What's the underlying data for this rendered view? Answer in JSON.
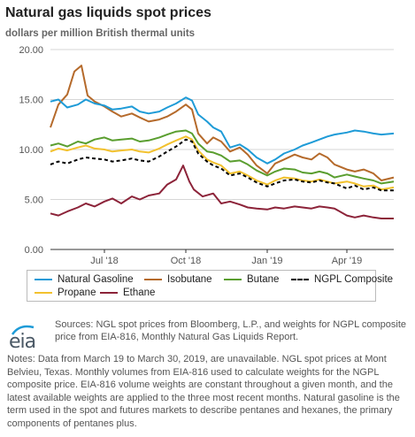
{
  "header": {
    "title": "Natural gas liquids spot prices",
    "subtitle": "dollars per million British thermal units"
  },
  "chart_data": {
    "type": "line",
    "title": "Natural gas liquids spot prices",
    "ylabel": "dollars per million British thermal units",
    "ylim": [
      0,
      20
    ],
    "yticks": [
      "0.00",
      "5.00",
      "10.00",
      "15.00",
      "20.00"
    ],
    "xticks": [
      "Jul '18",
      "Oct '18",
      "Jan '19",
      "Apr '19"
    ],
    "xtick_dates": [
      "2018-07-01",
      "2018-10-01",
      "2019-01-01",
      "2019-04-01"
    ],
    "x_range": [
      "2018-05-01",
      "2019-05-24"
    ],
    "grid": "horizontal",
    "legend_position": "bottom",
    "series": [
      {
        "name": "Natural Gasoline",
        "color": "#1e9bd7",
        "dash": "solid",
        "points": [
          [
            "2018-05-01",
            14.8
          ],
          [
            "2018-05-10",
            15.0
          ],
          [
            "2018-05-20",
            14.2
          ],
          [
            "2018-06-01",
            14.5
          ],
          [
            "2018-06-10",
            15.0
          ],
          [
            "2018-06-20",
            14.6
          ],
          [
            "2018-07-01",
            14.4
          ],
          [
            "2018-07-10",
            14.0
          ],
          [
            "2018-07-20",
            14.1
          ],
          [
            "2018-08-01",
            14.3
          ],
          [
            "2018-08-10",
            13.8
          ],
          [
            "2018-08-20",
            13.6
          ],
          [
            "2018-09-01",
            13.8
          ],
          [
            "2018-09-10",
            14.2
          ],
          [
            "2018-09-20",
            14.6
          ],
          [
            "2018-10-01",
            15.2
          ],
          [
            "2018-10-08",
            14.9
          ],
          [
            "2018-10-15",
            13.5
          ],
          [
            "2018-10-25",
            12.8
          ],
          [
            "2018-11-01",
            12.2
          ],
          [
            "2018-11-10",
            11.8
          ],
          [
            "2018-11-20",
            10.2
          ],
          [
            "2018-12-01",
            10.5
          ],
          [
            "2018-12-10",
            10.0
          ],
          [
            "2018-12-20",
            9.2
          ],
          [
            "2019-01-01",
            8.6
          ],
          [
            "2019-01-10",
            9.0
          ],
          [
            "2019-01-20",
            9.6
          ],
          [
            "2019-02-01",
            10.0
          ],
          [
            "2019-02-10",
            10.4
          ],
          [
            "2019-02-20",
            10.7
          ],
          [
            "2019-03-01",
            11.0
          ],
          [
            "2019-03-10",
            11.3
          ],
          [
            "2019-03-18",
            11.5
          ],
          [
            "2019-04-01",
            11.7
          ],
          [
            "2019-04-10",
            11.9
          ],
          [
            "2019-04-20",
            11.8
          ],
          [
            "2019-05-01",
            11.6
          ],
          [
            "2019-05-10",
            11.5
          ],
          [
            "2019-05-24",
            11.6
          ]
        ]
      },
      {
        "name": "Isobutane",
        "color": "#b56a2b",
        "dash": "solid",
        "points": [
          [
            "2018-05-01",
            12.2
          ],
          [
            "2018-05-10",
            14.5
          ],
          [
            "2018-05-20",
            15.5
          ],
          [
            "2018-05-28",
            17.8
          ],
          [
            "2018-06-05",
            18.4
          ],
          [
            "2018-06-12",
            15.4
          ],
          [
            "2018-06-20",
            14.8
          ],
          [
            "2018-07-01",
            14.3
          ],
          [
            "2018-07-10",
            13.8
          ],
          [
            "2018-07-20",
            13.3
          ],
          [
            "2018-08-01",
            13.6
          ],
          [
            "2018-08-10",
            13.2
          ],
          [
            "2018-08-20",
            12.8
          ],
          [
            "2018-09-01",
            13.0
          ],
          [
            "2018-09-10",
            13.3
          ],
          [
            "2018-09-20",
            13.8
          ],
          [
            "2018-10-01",
            14.5
          ],
          [
            "2018-10-08",
            14.0
          ],
          [
            "2018-10-15",
            11.6
          ],
          [
            "2018-10-25",
            10.6
          ],
          [
            "2018-11-01",
            11.2
          ],
          [
            "2018-11-10",
            10.8
          ],
          [
            "2018-11-20",
            9.8
          ],
          [
            "2018-12-01",
            10.2
          ],
          [
            "2018-12-10",
            9.5
          ],
          [
            "2018-12-20",
            8.4
          ],
          [
            "2019-01-01",
            7.6
          ],
          [
            "2019-01-10",
            8.6
          ],
          [
            "2019-01-20",
            9.0
          ],
          [
            "2019-02-01",
            9.5
          ],
          [
            "2019-02-10",
            9.2
          ],
          [
            "2019-02-20",
            9.0
          ],
          [
            "2019-03-01",
            9.6
          ],
          [
            "2019-03-10",
            9.2
          ],
          [
            "2019-03-18",
            8.5
          ],
          [
            "2019-04-01",
            8.0
          ],
          [
            "2019-04-10",
            7.8
          ],
          [
            "2019-04-20",
            8.0
          ],
          [
            "2019-05-01",
            7.6
          ],
          [
            "2019-05-10",
            6.9
          ],
          [
            "2019-05-24",
            7.2
          ]
        ]
      },
      {
        "name": "Butane",
        "color": "#5a9e2f",
        "dash": "solid",
        "points": [
          [
            "2018-05-01",
            10.4
          ],
          [
            "2018-05-10",
            10.6
          ],
          [
            "2018-05-20",
            10.3
          ],
          [
            "2018-06-01",
            10.8
          ],
          [
            "2018-06-10",
            10.6
          ],
          [
            "2018-06-20",
            11.0
          ],
          [
            "2018-07-01",
            11.2
          ],
          [
            "2018-07-10",
            10.9
          ],
          [
            "2018-07-20",
            11.0
          ],
          [
            "2018-08-01",
            11.1
          ],
          [
            "2018-08-10",
            10.8
          ],
          [
            "2018-08-20",
            10.9
          ],
          [
            "2018-09-01",
            11.2
          ],
          [
            "2018-09-10",
            11.5
          ],
          [
            "2018-09-20",
            11.8
          ],
          [
            "2018-10-01",
            11.9
          ],
          [
            "2018-10-08",
            11.6
          ],
          [
            "2018-10-15",
            10.6
          ],
          [
            "2018-10-25",
            9.8
          ],
          [
            "2018-11-01",
            9.7
          ],
          [
            "2018-11-10",
            9.4
          ],
          [
            "2018-11-20",
            8.8
          ],
          [
            "2018-12-01",
            8.9
          ],
          [
            "2018-12-10",
            8.5
          ],
          [
            "2018-12-20",
            7.9
          ],
          [
            "2019-01-01",
            7.4
          ],
          [
            "2019-01-10",
            7.8
          ],
          [
            "2019-01-20",
            8.1
          ],
          [
            "2019-02-01",
            8.0
          ],
          [
            "2019-02-10",
            7.7
          ],
          [
            "2019-02-20",
            7.6
          ],
          [
            "2019-03-01",
            7.8
          ],
          [
            "2019-03-10",
            7.6
          ],
          [
            "2019-03-18",
            7.2
          ],
          [
            "2019-04-01",
            7.5
          ],
          [
            "2019-04-10",
            7.3
          ],
          [
            "2019-04-20",
            7.1
          ],
          [
            "2019-05-01",
            6.9
          ],
          [
            "2019-05-10",
            6.6
          ],
          [
            "2019-05-24",
            6.8
          ]
        ]
      },
      {
        "name": "NGPL Composite",
        "color": "#000000",
        "dash": "dashed",
        "points": [
          [
            "2018-05-01",
            8.5
          ],
          [
            "2018-05-10",
            8.8
          ],
          [
            "2018-05-20",
            8.6
          ],
          [
            "2018-06-01",
            9.0
          ],
          [
            "2018-06-10",
            9.2
          ],
          [
            "2018-06-20",
            9.1
          ],
          [
            "2018-07-01",
            9.0
          ],
          [
            "2018-07-10",
            8.8
          ],
          [
            "2018-07-20",
            8.9
          ],
          [
            "2018-08-01",
            9.1
          ],
          [
            "2018-08-10",
            8.9
          ],
          [
            "2018-08-20",
            8.8
          ],
          [
            "2018-09-01",
            9.3
          ],
          [
            "2018-09-10",
            9.8
          ],
          [
            "2018-09-20",
            10.3
          ],
          [
            "2018-10-01",
            11.0
          ],
          [
            "2018-10-08",
            10.8
          ],
          [
            "2018-10-15",
            9.6
          ],
          [
            "2018-10-25",
            8.8
          ],
          [
            "2018-11-01",
            8.4
          ],
          [
            "2018-11-10",
            8.1
          ],
          [
            "2018-11-20",
            7.4
          ],
          [
            "2018-12-01",
            7.6
          ],
          [
            "2018-12-10",
            7.2
          ],
          [
            "2018-12-20",
            6.7
          ],
          [
            "2019-01-01",
            6.3
          ],
          [
            "2019-01-10",
            6.6
          ],
          [
            "2019-01-20",
            6.9
          ],
          [
            "2019-02-01",
            7.0
          ],
          [
            "2019-02-10",
            6.8
          ],
          [
            "2019-02-20",
            6.7
          ],
          [
            "2019-03-01",
            6.9
          ],
          [
            "2019-03-10",
            6.7
          ],
          [
            "2019-03-18",
            6.6
          ],
          [
            "2019-04-01",
            6.1
          ],
          [
            "2019-04-10",
            6.4
          ],
          [
            "2019-04-20",
            6.0
          ],
          [
            "2019-05-01",
            6.2
          ],
          [
            "2019-05-10",
            5.9
          ],
          [
            "2019-05-24",
            5.9
          ]
        ]
      },
      {
        "name": "Propane",
        "color": "#f2c12e",
        "dash": "solid",
        "points": [
          [
            "2018-05-01",
            9.8
          ],
          [
            "2018-05-10",
            10.1
          ],
          [
            "2018-05-20",
            9.9
          ],
          [
            "2018-06-01",
            10.2
          ],
          [
            "2018-06-10",
            10.4
          ],
          [
            "2018-06-20",
            10.1
          ],
          [
            "2018-07-01",
            10.0
          ],
          [
            "2018-07-10",
            9.8
          ],
          [
            "2018-07-20",
            9.9
          ],
          [
            "2018-08-01",
            10.0
          ],
          [
            "2018-08-10",
            9.8
          ],
          [
            "2018-08-20",
            9.7
          ],
          [
            "2018-09-01",
            10.1
          ],
          [
            "2018-09-10",
            10.5
          ],
          [
            "2018-09-20",
            10.9
          ],
          [
            "2018-10-01",
            11.3
          ],
          [
            "2018-10-08",
            11.0
          ],
          [
            "2018-10-15",
            9.9
          ],
          [
            "2018-10-25",
            9.0
          ],
          [
            "2018-11-01",
            8.7
          ],
          [
            "2018-11-10",
            8.4
          ],
          [
            "2018-11-20",
            7.6
          ],
          [
            "2018-12-01",
            7.8
          ],
          [
            "2018-12-10",
            7.4
          ],
          [
            "2018-12-20",
            6.9
          ],
          [
            "2019-01-01",
            6.5
          ],
          [
            "2019-01-10",
            6.9
          ],
          [
            "2019-01-20",
            7.2
          ],
          [
            "2019-02-01",
            7.1
          ],
          [
            "2019-02-10",
            6.9
          ],
          [
            "2019-02-20",
            6.8
          ],
          [
            "2019-03-01",
            7.0
          ],
          [
            "2019-03-10",
            6.8
          ],
          [
            "2019-03-18",
            6.6
          ],
          [
            "2019-04-01",
            6.8
          ],
          [
            "2019-04-10",
            6.6
          ],
          [
            "2019-04-20",
            6.3
          ],
          [
            "2019-05-01",
            6.4
          ],
          [
            "2019-05-10",
            6.0
          ],
          [
            "2019-05-24",
            6.2
          ]
        ]
      },
      {
        "name": "Ethane",
        "color": "#8c2339",
        "dash": "solid",
        "points": [
          [
            "2018-05-01",
            3.6
          ],
          [
            "2018-05-10",
            3.4
          ],
          [
            "2018-05-20",
            3.8
          ],
          [
            "2018-06-01",
            4.2
          ],
          [
            "2018-06-10",
            4.6
          ],
          [
            "2018-06-20",
            4.3
          ],
          [
            "2018-07-01",
            4.8
          ],
          [
            "2018-07-10",
            5.1
          ],
          [
            "2018-07-20",
            4.6
          ],
          [
            "2018-08-01",
            5.3
          ],
          [
            "2018-08-10",
            5.0
          ],
          [
            "2018-08-20",
            5.4
          ],
          [
            "2018-09-01",
            5.6
          ],
          [
            "2018-09-10",
            6.5
          ],
          [
            "2018-09-20",
            7.0
          ],
          [
            "2018-09-28",
            8.4
          ],
          [
            "2018-10-05",
            6.8
          ],
          [
            "2018-10-10",
            6.0
          ],
          [
            "2018-10-20",
            5.3
          ],
          [
            "2018-11-01",
            5.6
          ],
          [
            "2018-11-10",
            4.6
          ],
          [
            "2018-11-20",
            4.8
          ],
          [
            "2018-12-01",
            4.5
          ],
          [
            "2018-12-10",
            4.2
          ],
          [
            "2018-12-20",
            4.1
          ],
          [
            "2019-01-01",
            4.0
          ],
          [
            "2019-01-10",
            4.2
          ],
          [
            "2019-01-20",
            4.1
          ],
          [
            "2019-02-01",
            4.3
          ],
          [
            "2019-02-10",
            4.2
          ],
          [
            "2019-02-20",
            4.1
          ],
          [
            "2019-03-01",
            4.3
          ],
          [
            "2019-03-10",
            4.2
          ],
          [
            "2019-03-18",
            4.1
          ],
          [
            "2019-04-01",
            3.4
          ],
          [
            "2019-04-10",
            3.2
          ],
          [
            "2019-04-20",
            3.4
          ],
          [
            "2019-05-01",
            3.2
          ],
          [
            "2019-05-10",
            3.1
          ],
          [
            "2019-05-24",
            3.1
          ]
        ]
      }
    ]
  },
  "footer": {
    "logo_text": "eia",
    "sources": "Sources: NGL spot prices from Bloomberg, L.P., and weights for NGPL composite price from EIA-816, Monthly Natural Gas Liquids Report.",
    "notes": "Notes: Data from March 19 to March 30, 2019, are unavailable. NGL spot prices at Mont Belvieu, Texas. Monthly volumes from EIA-816 used to calculate weights for the NGPL composite price. EIA-816 volume weights are constant throughout a given month, and the latest available weights are applied to the three most recent months. Natural gasoline is the term used in the spot and futures markets to describe pentanes and hexanes, the primary components of pentanes plus."
  }
}
